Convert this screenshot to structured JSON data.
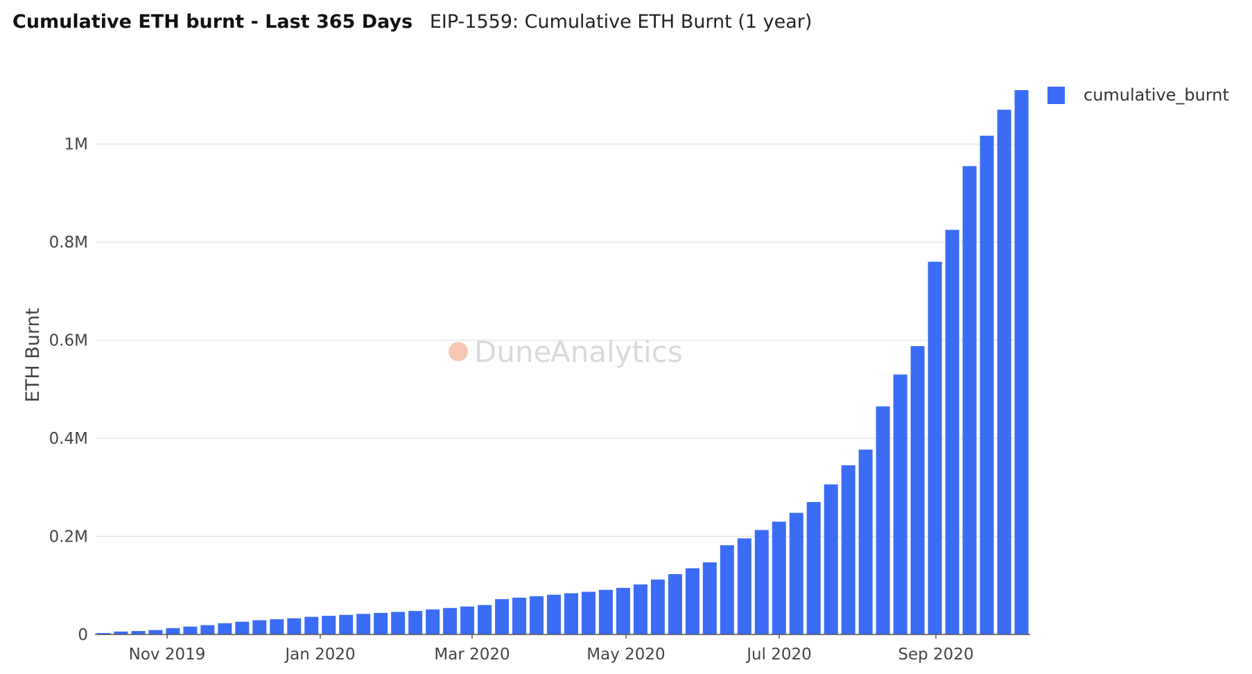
{
  "header": {
    "title": "Cumulative ETH burnt - Last 365 Days",
    "subtitle": "EIP-1559: Cumulative ETH Burnt (1 year)"
  },
  "watermark": {
    "part1": "Dune",
    "part2": "Analytics"
  },
  "colors": {
    "bar": "#3a6cf6",
    "grid": "#e6e6e6",
    "axis": "#555555"
  },
  "chart_data": {
    "type": "bar",
    "title": "Cumulative ETH burnt - Last 365 Days",
    "xlabel": "",
    "ylabel": "ETH Burnt",
    "ylim": [
      0,
      1100000
    ],
    "grid": true,
    "legend_position": "top-right",
    "x_tick_labels": [
      "Nov 2019",
      "Jan 2020",
      "Mar 2020",
      "May 2020",
      "Jul 2020",
      "Sep 2020"
    ],
    "y_tick_labels": [
      "0",
      "0.2M",
      "0.4M",
      "0.6M",
      "0.8M",
      "1M"
    ],
    "y_tick_values": [
      0,
      200000,
      400000,
      600000,
      800000,
      1000000
    ],
    "series": [
      {
        "name": "cumulative_burnt",
        "values": [
          3000,
          6000,
          7000,
          9000,
          13000,
          16000,
          19000,
          23000,
          26000,
          29000,
          31000,
          33000,
          36000,
          38000,
          40000,
          42000,
          44000,
          46000,
          48000,
          51000,
          54000,
          57000,
          60000,
          72000,
          75000,
          78000,
          81000,
          84000,
          87000,
          91000,
          95000,
          102000,
          112000,
          123000,
          135000,
          147000,
          182000,
          196000,
          213000,
          230000,
          248000,
          270000,
          306000,
          345000,
          377000,
          465000,
          530000,
          588000,
          760000,
          825000,
          955000,
          1017000,
          1070000,
          1110000
        ]
      }
    ]
  }
}
